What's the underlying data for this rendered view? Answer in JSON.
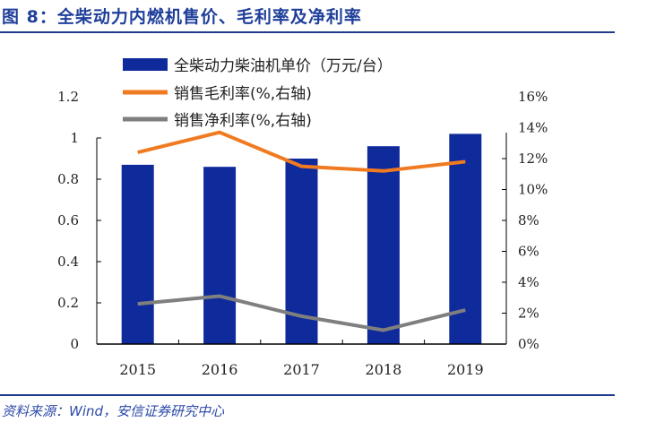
{
  "title": "图 8：全柴动力内燃机售价、毛利率及净利率",
  "source": "资料来源：Wind，安信证券研究中心",
  "chart_data": {
    "type": "bar+line",
    "categories": [
      "2015",
      "2016",
      "2017",
      "2018",
      "2019"
    ],
    "series": [
      {
        "name": "全柴动力柴油机单价（万元/台）",
        "type": "bar",
        "axis": "left",
        "color": "#0f2a9a",
        "values": [
          0.87,
          0.86,
          0.9,
          0.96,
          1.02
        ]
      },
      {
        "name": "销售毛利率(%,右轴)",
        "type": "line",
        "axis": "right",
        "color": "#f07a20",
        "values": [
          12.4,
          13.7,
          11.5,
          11.2,
          11.8
        ]
      },
      {
        "name": "销售净利率(%,右轴)",
        "type": "line",
        "axis": "right",
        "color": "#7f7f7f",
        "values": [
          2.6,
          3.1,
          1.8,
          0.9,
          2.2
        ]
      }
    ],
    "left_axis": {
      "ylim": [
        0,
        1.2
      ],
      "ticks": [
        "0",
        "0.2",
        "0.4",
        "0.6",
        "0.8",
        "1",
        "1.2"
      ]
    },
    "right_axis": {
      "ylim": [
        0,
        16
      ],
      "ticks": [
        "0%",
        "2%",
        "4%",
        "6%",
        "8%",
        "10%",
        "12%",
        "14%",
        "16%"
      ]
    },
    "legend": "top-left",
    "grid": false
  }
}
